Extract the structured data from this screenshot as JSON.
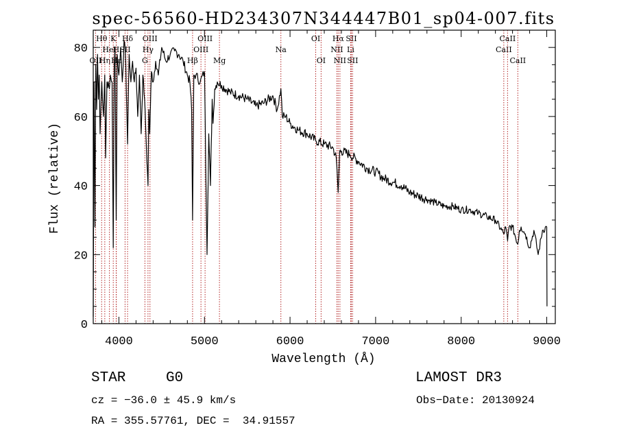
{
  "chart_data": {
    "type": "line",
    "title": "spec-56560-HD234307N344447B01_sp04-007.fits",
    "xlabel": "Wavelength (Å)",
    "ylabel": "Flux (relative)",
    "xlim": [
      3700,
      9100
    ],
    "ylim": [
      0,
      85
    ],
    "xticks": [
      4000,
      5000,
      6000,
      7000,
      8000,
      9000
    ],
    "yticks": [
      0,
      20,
      40,
      60,
      80
    ],
    "series": [
      {
        "name": "spectrum",
        "x": [
          3700,
          3710,
          3720,
          3730,
          3740,
          3750,
          3760,
          3770,
          3780,
          3800,
          3820,
          3835,
          3845,
          3860,
          3889,
          3900,
          3920,
          3934,
          3945,
          3955,
          3968,
          3980,
          4000,
          4020,
          4040,
          4060,
          4080,
          4101,
          4120,
          4140,
          4160,
          4180,
          4200,
          4220,
          4240,
          4260,
          4280,
          4300,
          4320,
          4340,
          4350,
          4360,
          4380,
          4400,
          4430,
          4460,
          4500,
          4550,
          4600,
          4650,
          4700,
          4750,
          4800,
          4830,
          4850,
          4861,
          4875,
          4900,
          4950,
          5000,
          5030,
          5050,
          5070,
          5090,
          5100,
          5120,
          5150,
          5200,
          5300,
          5400,
          5500,
          5600,
          5700,
          5800,
          5850,
          5893,
          5910,
          5950,
          6000,
          6100,
          6200,
          6300,
          6400,
          6500,
          6540,
          6563,
          6580,
          6600,
          6700,
          6800,
          6900,
          7000,
          7100,
          7200,
          7300,
          7400,
          7500,
          7600,
          7700,
          7800,
          7900,
          8000,
          8100,
          8200,
          8300,
          8400,
          8498,
          8520,
          8542,
          8560,
          8600,
          8662,
          8680,
          8700,
          8750,
          8800,
          8850,
          8900,
          8950,
          9000,
          9003
        ],
        "values": [
          2,
          70,
          28,
          75,
          62,
          78,
          65,
          72,
          55,
          70,
          60,
          72,
          48,
          70,
          68,
          72,
          70,
          22,
          75,
          80,
          30,
          78,
          72,
          80,
          70,
          82,
          76,
          52,
          78,
          70,
          76,
          70,
          74,
          60,
          72,
          55,
          72,
          65,
          52,
          40,
          62,
          55,
          73,
          70,
          76,
          72,
          80,
          76,
          78,
          79,
          78,
          76,
          72,
          70,
          62,
          30,
          72,
          72,
          70,
          73,
          20,
          55,
          40,
          65,
          58,
          68,
          70,
          69,
          67,
          66,
          65,
          63,
          64,
          66,
          62,
          68,
          60,
          60,
          58,
          56,
          55,
          53,
          52,
          51,
          48,
          38,
          50,
          50,
          49,
          47,
          45,
          44,
          42,
          41,
          40,
          38,
          37,
          36,
          35,
          34,
          34,
          33,
          33,
          32,
          31,
          30,
          26,
          28,
          24,
          28,
          28,
          23,
          27,
          28,
          26,
          22,
          27,
          20,
          27,
          28,
          5
        ]
      }
    ],
    "line_markers": [
      {
        "label": "OII",
        "x": 3727,
        "row": 3
      },
      {
        "label": "Hθ",
        "x": 3798,
        "row": 1
      },
      {
        "label": "Hη",
        "x": 3835,
        "row": 3
      },
      {
        "label": "HeI",
        "x": 3889,
        "row": 2
      },
      {
        "label": "K",
        "x": 3934,
        "row": 1
      },
      {
        "label": "H",
        "x": 3968,
        "row": 2
      },
      {
        "label": "Hε",
        "x": 3970,
        "row": 3
      },
      {
        "label": "Hδ",
        "x": 4101,
        "row": 1
      },
      {
        "label": "SII",
        "x": 4072,
        "row": 2
      },
      {
        "label": "G",
        "x": 4304,
        "row": 3
      },
      {
        "label": "OIII",
        "x": 4363,
        "row": 1
      },
      {
        "label": "Hγ",
        "x": 4340,
        "row": 2
      },
      {
        "label": "Hβ",
        "x": 4861,
        "row": 3
      },
      {
        "label": "OIII",
        "x": 4959,
        "row": 2
      },
      {
        "label": "OIII",
        "x": 5007,
        "row": 1
      },
      {
        "label": "Mg",
        "x": 5175,
        "row": 3
      },
      {
        "label": "Na",
        "x": 5893,
        "row": 2
      },
      {
        "label": "OI",
        "x": 6300,
        "row": 1
      },
      {
        "label": "OI",
        "x": 6363,
        "row": 3
      },
      {
        "label": "NII",
        "x": 6548,
        "row": 2
      },
      {
        "label": "Hα",
        "x": 6563,
        "row": 1
      },
      {
        "label": "NII",
        "x": 6583,
        "row": 3
      },
      {
        "label": "SII",
        "x": 6716,
        "row": 1
      },
      {
        "label": "Li",
        "x": 6708,
        "row": 2
      },
      {
        "label": "SII",
        "x": 6731,
        "row": 3
      },
      {
        "label": "CaII",
        "x": 8498,
        "row": 2
      },
      {
        "label": "CaII",
        "x": 8542,
        "row": 1
      },
      {
        "label": "CaII",
        "x": 8662,
        "row": 3
      }
    ]
  },
  "info": {
    "class": "STAR",
    "subclass": "G0",
    "survey": "LAMOST DR3",
    "cz": "cz = −36.0 ± 45.9 km/s",
    "obs_date": "Obs−Date: 20130924",
    "radec": "RA = 355.57761, DEC =  34.91557"
  },
  "colors": {
    "spectrum": "#000000",
    "marker": "#b22222",
    "axis": "#000000"
  }
}
